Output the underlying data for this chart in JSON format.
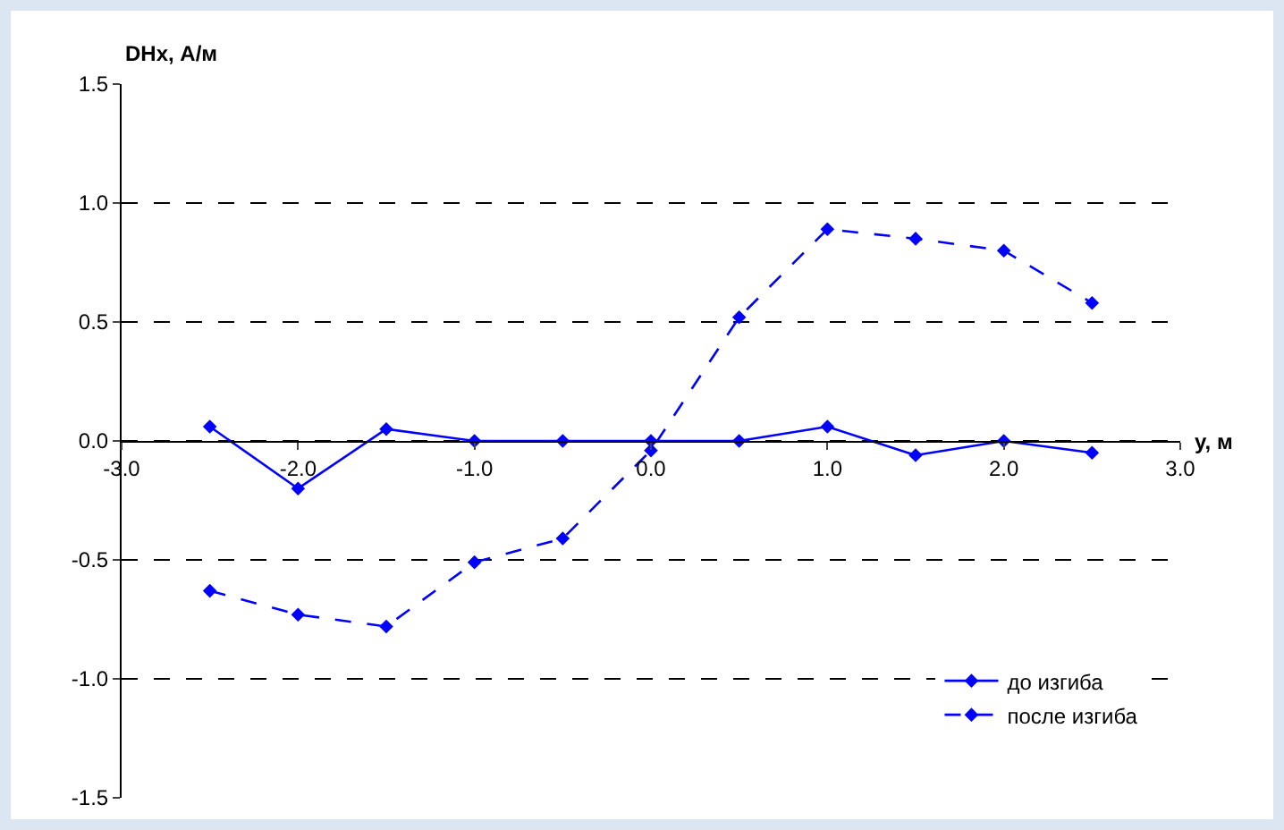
{
  "chart_data": {
    "type": "line",
    "xlabel": "y, м",
    "ylabel": "DHx, А/м",
    "x": [
      -2.5,
      -2,
      -1.5,
      -1,
      -0.5,
      0,
      0.5,
      1,
      1.5,
      2,
      2.5
    ],
    "series": [
      {
        "name": "до изгиба",
        "color": "#0000ff",
        "line_style": "solid",
        "values": [
          0.06,
          -0.2,
          0.05,
          0,
          0,
          0,
          0,
          0.06,
          -0.06,
          0,
          -0.05
        ]
      },
      {
        "name": "после изгиба",
        "color": "#0000ff",
        "line_style": "dashed",
        "values": [
          -0.63,
          -0.73,
          -0.78,
          -0.51,
          -0.41,
          -0.04,
          0.52,
          0.89,
          0.85,
          0.8,
          0.58
        ]
      }
    ],
    "xlim": [
      -3,
      3
    ],
    "xticks": [
      {
        "value": -3,
        "label": "-3.0"
      },
      {
        "value": -2,
        "label": "-2.0"
      },
      {
        "value": -1,
        "label": "-1.0"
      },
      {
        "value": 0,
        "label": "0.0"
      },
      {
        "value": 1,
        "label": "1.0"
      },
      {
        "value": 2,
        "label": "2.0"
      },
      {
        "value": 3,
        "label": "3.0"
      }
    ],
    "ylim": [
      -1.5,
      1.5
    ],
    "yticks": [
      {
        "value": -1.5,
        "label": "-1.5"
      },
      {
        "value": -1,
        "label": "-1.0"
      },
      {
        "value": -0.5,
        "label": "-0.5"
      },
      {
        "value": 0,
        "label": "0.0"
      },
      {
        "value": 0.5,
        "label": "0.5"
      },
      {
        "value": 1,
        "label": "1.0"
      },
      {
        "value": 1.5,
        "label": "1.5"
      }
    ],
    "grid": "y",
    "legend": "bottom right",
    "marker": "diamond"
  }
}
